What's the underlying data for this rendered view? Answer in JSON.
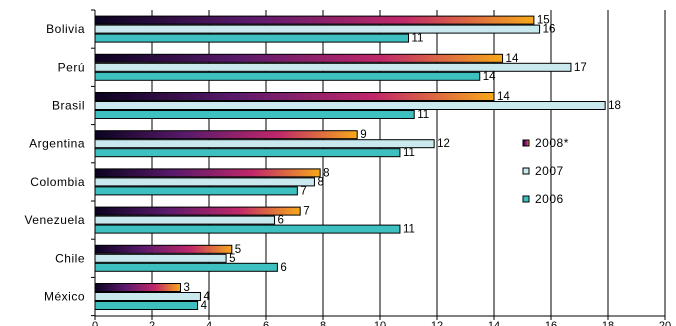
{
  "chart_data": {
    "type": "bar",
    "orientation": "horizontal",
    "categories": [
      "Bolivia",
      "Perú",
      "Brasil",
      "Argentina",
      "Colombia",
      "Venezuela",
      "Chile",
      "México"
    ],
    "series": [
      {
        "name": "2008*",
        "values": [
          15.4,
          14.3,
          14.0,
          9.2,
          7.9,
          7.2,
          4.8,
          3.0
        ],
        "labels": [
          "15",
          "14",
          "14",
          "9",
          "8",
          "7",
          "5",
          "3"
        ],
        "color": "#f7a81b",
        "gradient": [
          "#0b0320",
          "#5a1a6b",
          "#c0286a",
          "#f7a81b"
        ]
      },
      {
        "name": "2007",
        "values": [
          15.6,
          16.7,
          17.9,
          11.9,
          7.7,
          6.3,
          4.6,
          3.7
        ],
        "labels": [
          "16",
          "17",
          "18",
          "12",
          "8",
          "6",
          "5",
          "4"
        ],
        "color": "#c9e9ef"
      },
      {
        "name": "2006",
        "values": [
          11.0,
          13.5,
          11.2,
          10.7,
          7.1,
          10.7,
          6.4,
          3.6
        ],
        "labels": [
          "11",
          "14",
          "11",
          "11",
          "7",
          "11",
          "6",
          "4"
        ],
        "color": "#3ec0c0"
      }
    ],
    "x_ticks": [
      "0",
      "2",
      "4",
      "6",
      "8",
      "10",
      "12",
      "14",
      "16",
      "18",
      "20"
    ],
    "xlim": [
      0,
      20
    ],
    "grid": "vertical",
    "legend_position": "right",
    "title": "",
    "xlabel": "",
    "ylabel": ""
  }
}
